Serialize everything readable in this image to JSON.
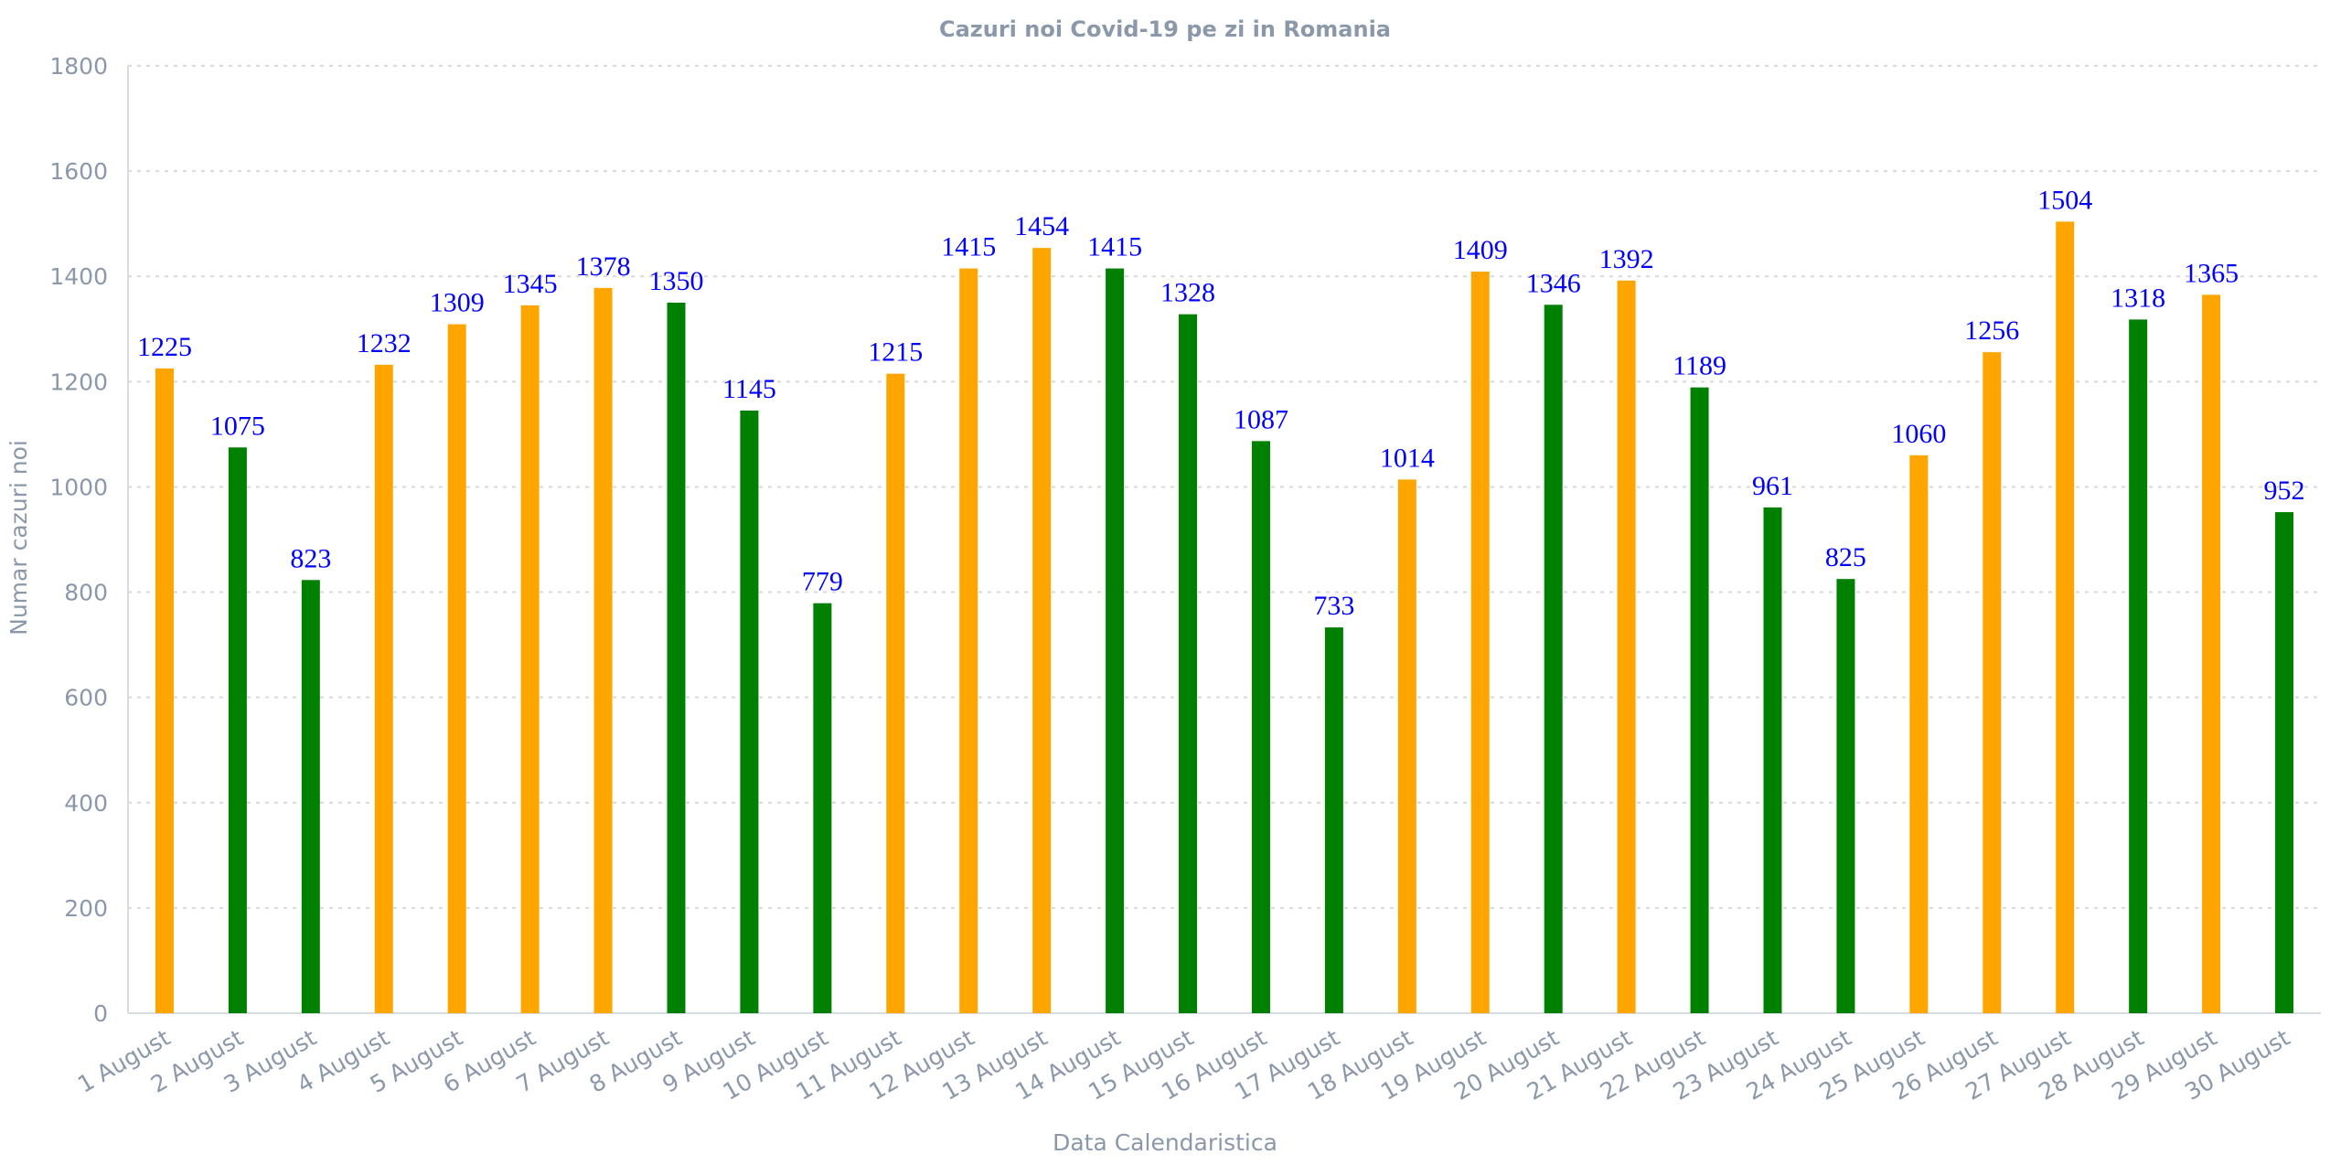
{
  "chart_data": {
    "type": "bar",
    "title": "Cazuri noi Covid-19 pe zi in Romania",
    "xlabel": "Data Calendaristica",
    "ylabel": "Numar cazuri noi",
    "ylim": [
      0,
      1800
    ],
    "yticks": [
      0,
      200,
      400,
      600,
      800,
      1000,
      1200,
      1400,
      1600,
      1800
    ],
    "grid": true,
    "colors": {
      "orange": "#FFA500",
      "green": "#008000",
      "label": "#0000FF",
      "axis_text": "#8A98AA"
    },
    "categories": [
      "1 August",
      "2 August",
      "3 August",
      "4 August",
      "5 August",
      "6 August",
      "7 August",
      "8 August",
      "9 August",
      "10 August",
      "11 August",
      "12 August",
      "13 August",
      "14 August",
      "15 August",
      "16 August",
      "17 August",
      "18 August",
      "19 August",
      "20 August",
      "21 August",
      "22 August",
      "23 August",
      "24 August",
      "25 August",
      "26 August",
      "27 August",
      "28 August",
      "29 August",
      "30 August"
    ],
    "values": [
      1225,
      1075,
      823,
      1232,
      1309,
      1345,
      1378,
      1350,
      1145,
      779,
      1215,
      1415,
      1454,
      1415,
      1328,
      1087,
      733,
      1014,
      1409,
      1346,
      1392,
      1189,
      961,
      825,
      1060,
      1256,
      1504,
      1318,
      1365,
      952
    ],
    "bar_colors": [
      "orange",
      "green",
      "green",
      "orange",
      "orange",
      "orange",
      "orange",
      "green",
      "green",
      "green",
      "orange",
      "orange",
      "orange",
      "green",
      "green",
      "green",
      "green",
      "orange",
      "orange",
      "green",
      "orange",
      "green",
      "green",
      "green",
      "orange",
      "orange",
      "orange",
      "green",
      "orange",
      "green"
    ]
  }
}
